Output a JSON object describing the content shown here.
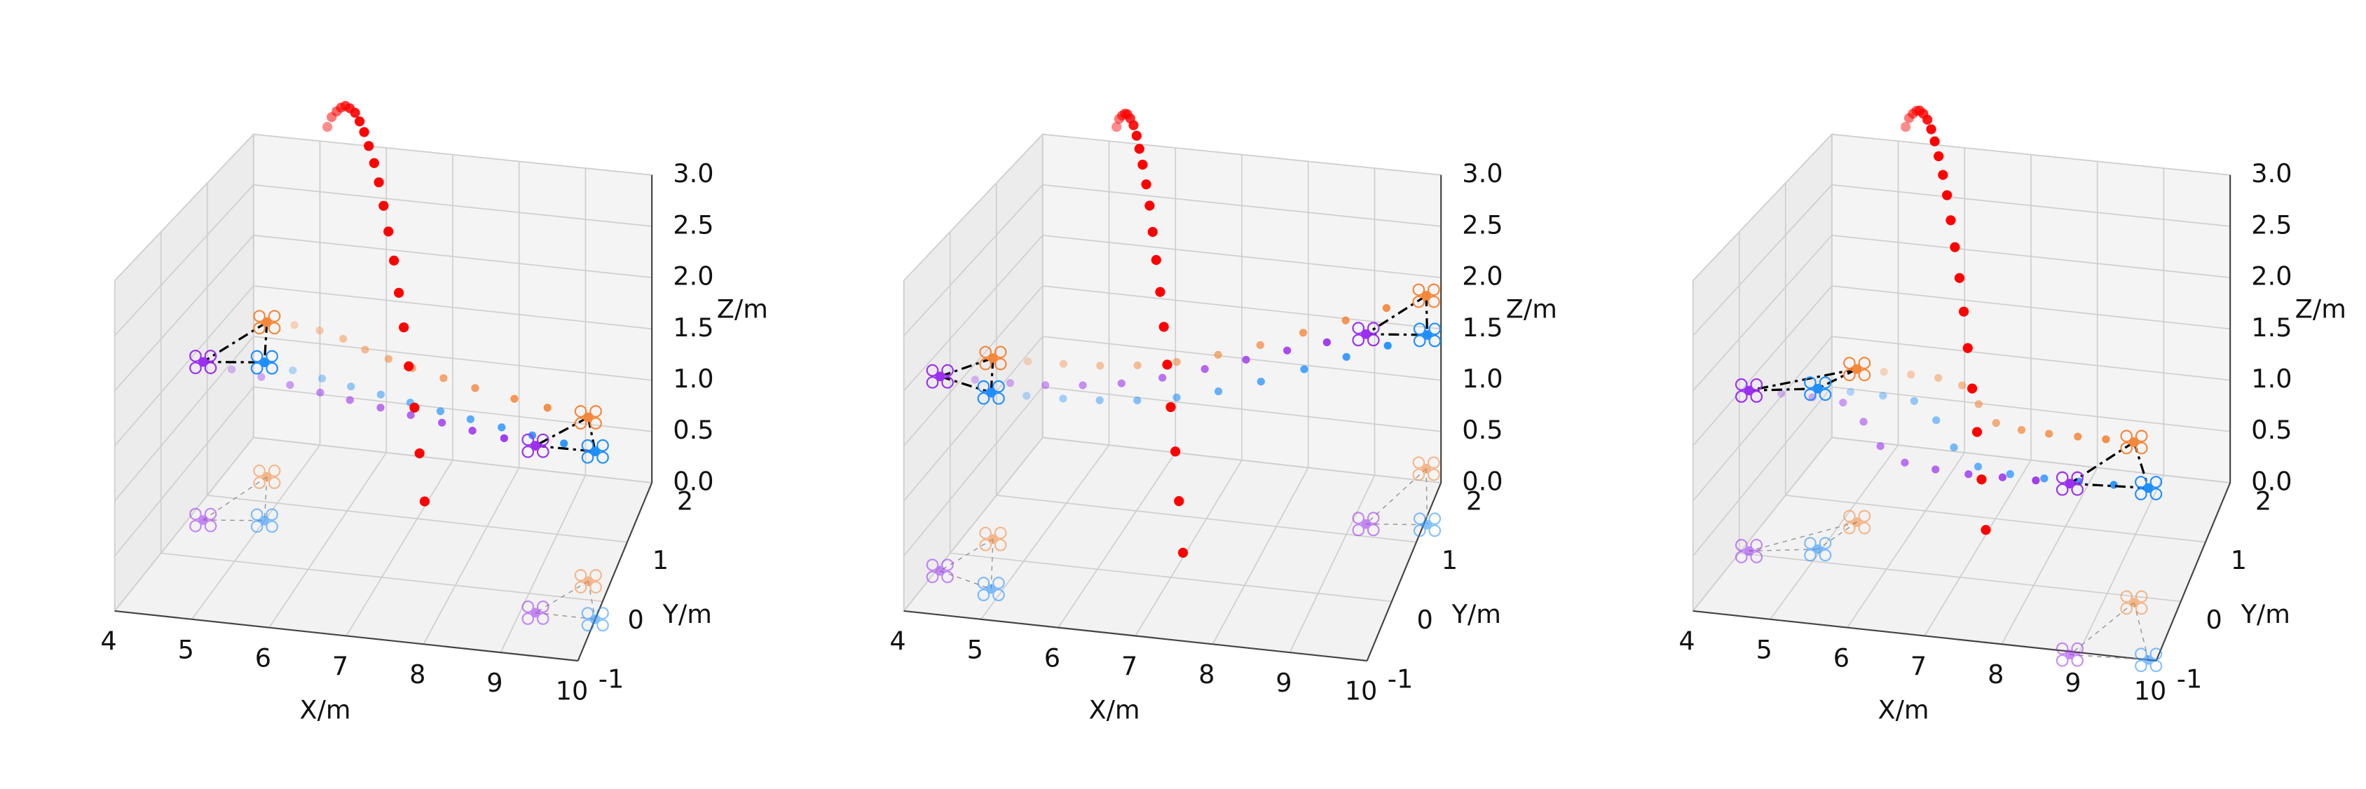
{
  "chart_data": [
    {
      "type": "scatter3d",
      "xlabel": "X/m",
      "ylabel": "Y/m",
      "zlabel": "Z/m",
      "xlim": [
        4,
        10
      ],
      "ylim": [
        -1,
        2
      ],
      "zlim": [
        0,
        3
      ],
      "xticks": [
        4,
        5,
        6,
        7,
        8,
        9,
        10
      ],
      "yticks": [
        -1,
        0,
        1,
        2
      ],
      "zticks": [
        {
          "value": 0,
          "label": "0.0"
        },
        0.5,
        {
          "value": 1,
          "label": "1.0"
        },
        1.5,
        {
          "value": 2,
          "label": "2.0"
        },
        2.5,
        {
          "value": 3,
          "label": "3.0"
        }
      ],
      "series": [
        {
          "color": "#ff0000",
          "marker": "ball",
          "x": [
            5.3,
            5.4,
            5.51,
            5.61,
            5.71,
            5.81,
            5.92,
            6.02,
            6.12,
            6.22,
            6.33,
            6.43,
            6.53,
            6.63,
            6.74,
            6.84,
            6.94,
            7.04,
            7.15,
            7.25,
            7.35
          ],
          "y": [
            1.7,
            1.64,
            1.58,
            1.52,
            1.46,
            1.4,
            1.34,
            1.28,
            1.22,
            1.16,
            1.1,
            1.04,
            0.98,
            0.92,
            0.86,
            0.8,
            0.74,
            0.68,
            0.62,
            0.56,
            0.5
          ],
          "z": [
            3.3,
            3.43,
            3.52,
            3.59,
            3.64,
            3.65,
            3.64,
            3.59,
            3.52,
            3.42,
            3.29,
            3.14,
            2.95,
            2.74,
            2.5,
            2.23,
            1.94,
            1.61,
            1.26,
            0.87,
            0.46
          ]
        },
        {
          "color": "#f5873a",
          "marker": "drone",
          "x": [
            4.6,
            5.0,
            5.4,
            5.8,
            6.2,
            6.6,
            7.0,
            7.5,
            8.0,
            8.6,
            9.1,
            9.7
          ],
          "y": [
            1.4,
            1.4,
            1.35,
            1.25,
            1.1,
            0.98,
            0.86,
            0.74,
            0.62,
            0.5,
            0.4,
            0.3
          ],
          "z": [
            1.5,
            1.5,
            1.5,
            1.5,
            1.5,
            1.5,
            1.5,
            1.5,
            1.5,
            1.5,
            1.5,
            1.5
          ]
        },
        {
          "color": "#9b30f0",
          "marker": "drone",
          "x": [
            4.2,
            4.65,
            5.11,
            5.56,
            6.02,
            6.47,
            6.93,
            7.38,
            7.84,
            8.29,
            8.75,
            9.2
          ],
          "y": [
            0.6,
            0.52,
            0.44,
            0.35,
            0.27,
            0.19,
            0.11,
            0.03,
            -0.05,
            -0.14,
            -0.22,
            -0.3
          ],
          "z": [
            1.5,
            1.5,
            1.5,
            1.5,
            1.5,
            1.5,
            1.5,
            1.5,
            1.5,
            1.5,
            1.5,
            1.5
          ]
        },
        {
          "color": "#1f8fff",
          "marker": "drone",
          "x": [
            5.0,
            5.45,
            5.91,
            6.36,
            6.82,
            7.27,
            7.73,
            8.18,
            8.64,
            9.09,
            9.55,
            10.0
          ],
          "y": [
            0.7,
            0.61,
            0.52,
            0.43,
            0.34,
            0.25,
            0.15,
            0.06,
            -0.03,
            -0.12,
            -0.21,
            -0.3
          ],
          "z": [
            1.5,
            1.5,
            1.5,
            1.5,
            1.5,
            1.5,
            1.5,
            1.5,
            1.5,
            1.5,
            1.5,
            1.5
          ]
        }
      ]
    },
    {
      "type": "scatter3d",
      "xlabel": "X/m",
      "ylabel": "Y/m",
      "zlabel": "Z/m",
      "xlim": [
        4,
        10
      ],
      "ylim": [
        -1,
        2
      ],
      "zlim": [
        0,
        3
      ],
      "xticks": [
        4,
        5,
        6,
        7,
        8,
        9,
        10
      ],
      "yticks": [
        -1,
        0,
        1,
        2
      ],
      "zticks": [
        {
          "value": 0,
          "label": "0.0"
        },
        0.5,
        {
          "value": 1,
          "label": "1.0"
        },
        1.5,
        {
          "value": 2,
          "label": "2.0"
        },
        2.5,
        {
          "value": 3,
          "label": "3.0"
        }
      ],
      "series": [
        {
          "color": "#ff0000",
          "marker": "ball",
          "x": [
            5.3,
            5.4,
            5.51,
            5.61,
            5.71,
            5.81,
            5.92,
            6.02,
            6.12,
            6.22,
            6.33,
            6.43,
            6.53,
            6.63,
            6.74,
            6.84,
            6.94,
            7.04,
            7.15,
            7.25,
            7.35
          ],
          "y": [
            1.7,
            1.6,
            1.49,
            1.39,
            1.28,
            1.18,
            1.07,
            0.97,
            0.86,
            0.76,
            0.65,
            0.55,
            0.44,
            0.34,
            0.23,
            0.13,
            0.02,
            -0.09,
            -0.19,
            -0.3,
            -0.4
          ],
          "z": [
            3.3,
            3.43,
            3.52,
            3.59,
            3.64,
            3.65,
            3.64,
            3.59,
            3.52,
            3.42,
            3.29,
            3.14,
            2.95,
            2.74,
            2.5,
            2.23,
            1.94,
            1.61,
            1.26,
            0.87,
            0.46
          ]
        },
        {
          "color": "#f5873a",
          "marker": "drone",
          "x": [
            4.4,
            4.88,
            5.36,
            5.85,
            6.33,
            6.81,
            7.29,
            7.77,
            8.25,
            8.74,
            9.22,
            9.7
          ],
          "y": [
            0.3,
            0.3,
            0.32,
            0.35,
            0.42,
            0.55,
            0.75,
            1.0,
            1.3,
            1.6,
            1.9,
            2.2
          ],
          "z": [
            1.7,
            1.7,
            1.7,
            1.7,
            1.7,
            1.7,
            1.7,
            1.7,
            1.7,
            1.7,
            1.7,
            1.7
          ]
        },
        {
          "color": "#9b30f0",
          "marker": "drone",
          "x": [
            4.05,
            4.52,
            4.99,
            5.45,
            5.92,
            6.39,
            6.86,
            7.33,
            7.79,
            8.26,
            8.73,
            9.2
          ],
          "y": [
            -0.3,
            -0.3,
            -0.3,
            -0.28,
            -0.22,
            -0.12,
            0.05,
            0.28,
            0.52,
            0.76,
            0.98,
            1.2
          ],
          "z": [
            1.8,
            1.8,
            1.8,
            1.8,
            1.8,
            1.8,
            1.8,
            1.8,
            1.8,
            1.8,
            1.8,
            1.8
          ]
        },
        {
          "color": "#1f8fff",
          "marker": "drone",
          "x": [
            4.85,
            5.32,
            5.8,
            6.27,
            6.74,
            7.21,
            7.69,
            8.16,
            8.63,
            9.1,
            9.58,
            10.05
          ],
          "y": [
            -0.5,
            -0.5,
            -0.49,
            -0.46,
            -0.4,
            -0.28,
            -0.1,
            0.15,
            0.45,
            0.75,
            1.03,
            1.3
          ],
          "z": [
            1.8,
            1.8,
            1.8,
            1.8,
            1.8,
            1.8,
            1.8,
            1.8,
            1.8,
            1.8,
            1.8,
            1.8
          ]
        }
      ]
    },
    {
      "type": "scatter3d",
      "xlabel": "X/m",
      "ylabel": "Y/m",
      "zlabel": "Z/m",
      "xlim": [
        4,
        10
      ],
      "ylim": [
        -1,
        2
      ],
      "zlim": [
        0,
        3
      ],
      "xticks": [
        4,
        5,
        6,
        7,
        8,
        9,
        10
      ],
      "yticks": [
        -1,
        0,
        1,
        2
      ],
      "zticks": [
        {
          "value": 0,
          "label": "0.0"
        },
        0.5,
        {
          "value": 1,
          "label": "1.0"
        },
        1.5,
        {
          "value": 2,
          "label": "2.0"
        },
        2.5,
        {
          "value": 3,
          "label": "3.0"
        }
      ],
      "series": [
        {
          "color": "#ff0000",
          "marker": "ball",
          "x": [
            5.3,
            5.4,
            5.51,
            5.61,
            5.71,
            5.81,
            5.92,
            6.02,
            6.12,
            6.22,
            6.33,
            6.43,
            6.53,
            6.63,
            6.74,
            6.84,
            6.94,
            7.04,
            7.15,
            7.25,
            7.35
          ],
          "y": [
            1.7,
            1.62,
            1.53,
            1.45,
            1.36,
            1.28,
            1.19,
            1.11,
            1.02,
            0.94,
            0.85,
            0.77,
            0.68,
            0.6,
            0.51,
            0.43,
            0.34,
            0.26,
            0.17,
            0.09,
            0.0
          ],
          "z": [
            3.3,
            3.43,
            3.52,
            3.59,
            3.64,
            3.65,
            3.64,
            3.59,
            3.52,
            3.42,
            3.29,
            3.14,
            2.95,
            2.74,
            2.5,
            2.23,
            1.94,
            1.61,
            1.26,
            0.87,
            0.46
          ]
        },
        {
          "color": "#f5873a",
          "marker": "drone",
          "x": [
            5.2,
            5.58,
            5.96,
            6.35,
            6.73,
            7.11,
            7.49,
            7.87,
            8.25,
            8.64,
            9.02,
            9.4
          ],
          "y": [
            0.7,
            0.7,
            0.7,
            0.69,
            0.6,
            0.3,
            0.0,
            -0.08,
            -0.1,
            -0.1,
            -0.1,
            -0.1
          ],
          "z": [
            1.45,
            1.45,
            1.45,
            1.45,
            1.45,
            1.45,
            1.45,
            1.45,
            1.45,
            1.45,
            1.45,
            1.45
          ]
        },
        {
          "color": "#9b30f0",
          "marker": "drone",
          "x": [
            4.1,
            4.54,
            4.97,
            5.41,
            5.85,
            6.28,
            6.72,
            7.15,
            7.59,
            8.03,
            8.46,
            8.9
          ],
          "y": [
            0.05,
            0.05,
            0.04,
            0.0,
            -0.3,
            -0.7,
            -0.95,
            -1.02,
            -1.05,
            -1.05,
            -1.05,
            -1.05
          ],
          "z": [
            1.5,
            1.5,
            1.5,
            1.5,
            1.5,
            1.5,
            1.5,
            1.5,
            1.5,
            1.5,
            1.5,
            1.5
          ]
        },
        {
          "color": "#1f8fff",
          "marker": "drone",
          "x": [
            4.95,
            5.4,
            5.85,
            6.3,
            6.75,
            7.2,
            7.65,
            8.1,
            8.55,
            9.0,
            9.45,
            9.9
          ],
          "y": [
            0.2,
            0.2,
            0.19,
            0.15,
            -0.15,
            -0.6,
            -0.9,
            -0.98,
            -1.0,
            -1.0,
            -1.0,
            -1.0
          ],
          "z": [
            1.5,
            1.5,
            1.5,
            1.5,
            1.5,
            1.5,
            1.5,
            1.5,
            1.5,
            1.5,
            1.5,
            1.5
          ]
        }
      ]
    }
  ]
}
